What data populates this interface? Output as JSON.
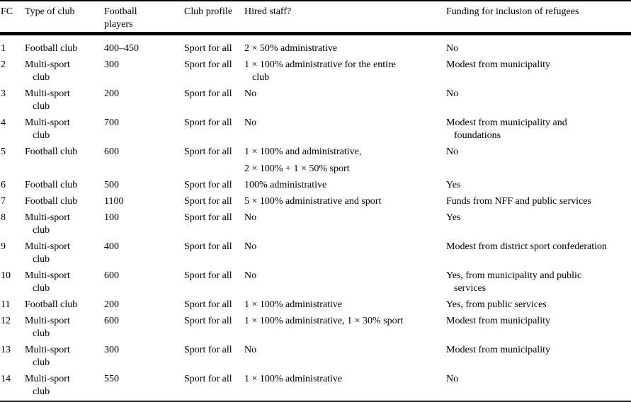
{
  "table": {
    "headers": [
      "FC",
      "Type of club",
      "Football\nplayers",
      "Club profile",
      "Hired staff?",
      "Funding for inclusion of refugees"
    ],
    "rows": [
      {
        "fc": "1",
        "type": "Football club",
        "players": "400–450",
        "profile": "Sport for all",
        "staff": "2 × 50% administrative",
        "funding": "No"
      },
      {
        "fc": "2",
        "type": "Multi-sport\nclub",
        "players": "300",
        "profile": "Sport for all",
        "staff": "1 × 100% administrative for the entire\nclub",
        "funding": "Modest from municipality"
      },
      {
        "fc": "3",
        "type": "Multi-sport\nclub",
        "players": "200",
        "profile": "Sport for all",
        "staff": "No",
        "funding": "No"
      },
      {
        "fc": "4",
        "type": "Multi-sport\nclub",
        "players": "700",
        "profile": "Sport for all",
        "staff": "No",
        "funding": "Modest from municipality and\nfoundations"
      },
      {
        "fc": "5",
        "type": "Football club",
        "players": "600",
        "profile": "Sport for all",
        "staff": "1 × 100% and administrative,",
        "staff2": "2 × 100% + 1 × 50% sport",
        "funding": "No"
      },
      {
        "fc": "6",
        "type": "Football club",
        "players": "500",
        "profile": "Sport for all",
        "staff": "100% administrative",
        "funding": "Yes"
      },
      {
        "fc": "7",
        "type": "Football club",
        "players": "1100",
        "profile": "Sport for all",
        "staff": "5 × 100% administrative and sport",
        "funding": "Funds from NFF and public services"
      },
      {
        "fc": "8",
        "type": "Multi-sport\nclub",
        "players": "100",
        "profile": "Sport for all",
        "staff": "No",
        "funding": "Yes"
      },
      {
        "fc": "9",
        "type": "Multi-sport\nclub",
        "players": "400",
        "profile": "Sport for all",
        "staff": "No",
        "funding": "Modest from district sport confederation"
      },
      {
        "fc": "10",
        "type": "Multi-sport\nclub",
        "players": "600",
        "profile": "Sport for all",
        "staff": "No",
        "funding": "Yes, from municipality and public\nservices"
      },
      {
        "fc": "11",
        "type": "Football club",
        "players": "200",
        "profile": "Sport for all",
        "staff": "1 × 100% administrative",
        "funding": "Yes, from public services"
      },
      {
        "fc": "12",
        "type": "Multi-sport\nclub",
        "players": "600",
        "profile": "Sport for all",
        "staff": "1 × 100% administrative, 1 × 30% sport",
        "funding": "Modest from municipality"
      },
      {
        "fc": "13",
        "type": "Multi-sport\nclub",
        "players": "300",
        "profile": "Sport for all",
        "staff": "No",
        "funding": "Modest from municipality"
      },
      {
        "fc": "14",
        "type": "Multi-sport\nclub",
        "players": "550",
        "profile": "Sport for all",
        "staff": "1 × 100% administrative",
        "funding": "No"
      }
    ]
  },
  "colors": {
    "text": "#000000",
    "rule": "#000000",
    "background": "#ffffff"
  }
}
